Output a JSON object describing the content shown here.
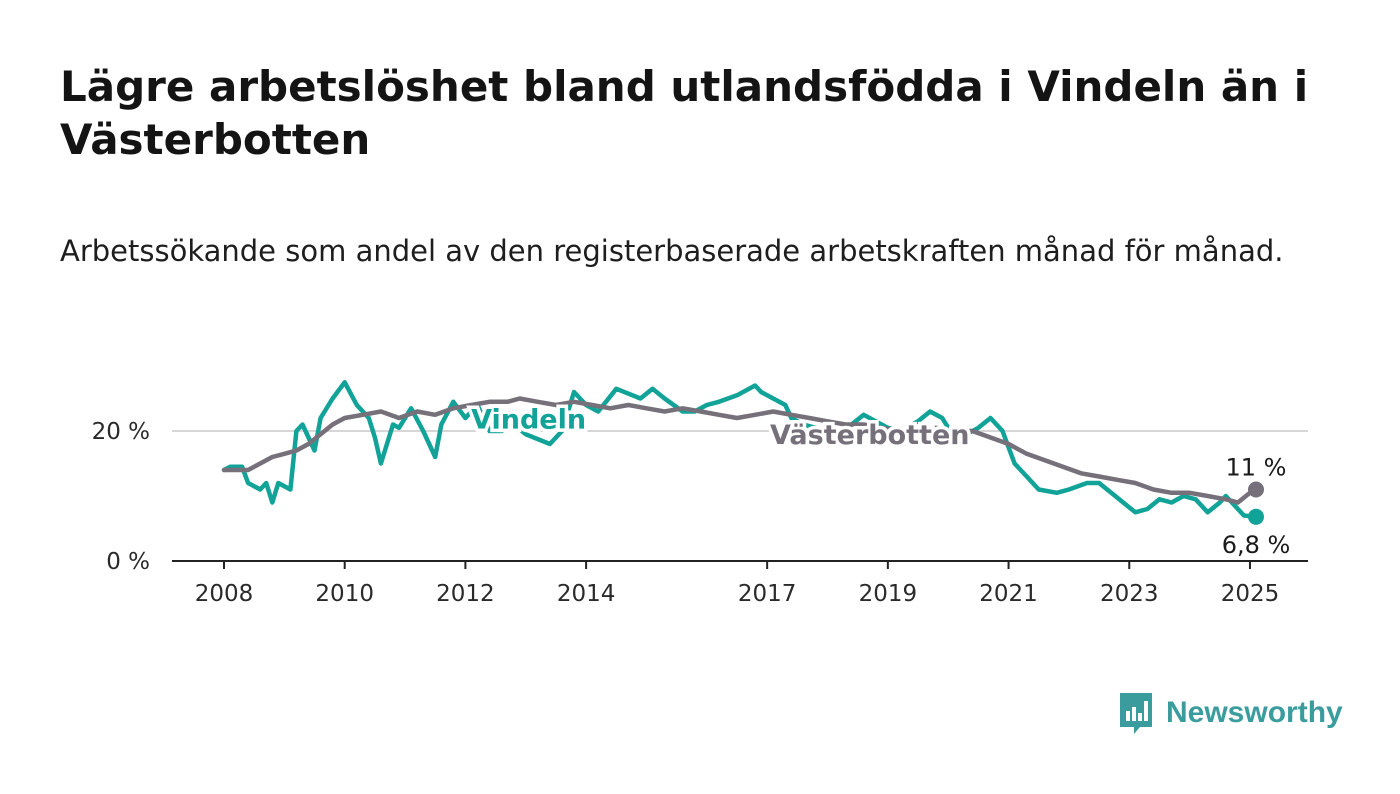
{
  "header": {
    "title": "Lägre arbetslöshet bland utlandsfödda i Vindeln än i Västerbotten",
    "subtitle": "Arbetssökande som andel av den registerbaserade arbetskraften månad för månad."
  },
  "brand": {
    "name": "Newsworthy",
    "color": "#3a9c9c"
  },
  "chart_data": {
    "type": "line",
    "title": "Lägre arbetslöshet bland utlandsfödda i Vindeln än i Västerbotten",
    "subtitle": "Arbetssökande som andel av den registerbaserade arbetskraften månad för månad.",
    "xlabel": "",
    "ylabel": "",
    "x_ticks": [
      "2008",
      "2010",
      "2012",
      "2014",
      "2017",
      "2019",
      "2021",
      "2023",
      "2025"
    ],
    "y_ticks": [
      "0 %",
      "20 %"
    ],
    "xlim": [
      2008,
      2025.1
    ],
    "ylim": [
      0,
      30
    ],
    "grid": "horizontal at 20 %",
    "series": [
      {
        "name": "Vindeln",
        "color": "#12a398",
        "end_label": "6,8 %",
        "x": [
          2008.0,
          2008.1,
          2008.3,
          2008.4,
          2008.6,
          2008.7,
          2008.8,
          2008.9,
          2009.1,
          2009.2,
          2009.3,
          2009.5,
          2009.6,
          2009.8,
          2010.0,
          2010.2,
          2010.4,
          2010.5,
          2010.6,
          2010.8,
          2010.9,
          2011.1,
          2011.3,
          2011.5,
          2011.6,
          2011.8,
          2012.0,
          2012.2,
          2012.4,
          2012.6,
          2012.8,
          2013.0,
          2013.4,
          2013.6,
          2013.8,
          2014.0,
          2014.2,
          2014.5,
          2014.9,
          2015.1,
          2015.3,
          2015.6,
          2015.8,
          2016.0,
          2016.2,
          2016.5,
          2016.8,
          2016.9,
          2017.1,
          2017.3,
          2017.4,
          2017.6,
          2017.8,
          2018.0,
          2018.2,
          2018.4,
          2018.6,
          2018.8,
          2019.0,
          2019.2,
          2019.5,
          2019.7,
          2019.9,
          2020.1,
          2020.3,
          2020.5,
          2020.7,
          2020.9,
          2021.1,
          2021.3,
          2021.5,
          2021.8,
          2022.0,
          2022.3,
          2022.5,
          2022.7,
          2022.9,
          2023.1,
          2023.3,
          2023.5,
          2023.7,
          2023.9,
          2024.1,
          2024.3,
          2024.5,
          2024.6,
          2024.8,
          2024.9,
          2025.1
        ],
        "values": [
          14,
          14.5,
          14.5,
          12,
          11,
          12,
          9,
          12,
          11,
          20,
          21,
          17,
          22,
          25,
          27.5,
          24,
          22,
          19,
          15,
          21,
          20.5,
          23.5,
          20,
          16,
          21,
          24.5,
          22,
          24,
          20,
          20,
          21,
          19.5,
          18,
          20,
          26,
          24,
          23,
          26.5,
          25,
          26.5,
          25,
          23,
          23,
          24,
          24.5,
          25.5,
          27,
          26,
          25,
          24,
          22,
          21,
          20.5,
          20,
          19.5,
          21,
          22.5,
          21.5,
          20.5,
          20,
          21.5,
          23,
          22,
          19,
          19.5,
          20.5,
          22,
          20,
          15,
          13,
          11,
          10.5,
          11,
          12,
          12,
          10.5,
          9,
          7.5,
          8,
          9.5,
          9,
          10,
          9.5,
          7.5,
          9,
          10,
          8,
          7,
          6.8
        ]
      },
      {
        "name": "Västerbotten",
        "color": "#75707a",
        "end_label": "11 %",
        "x": [
          2008.0,
          2008.2,
          2008.4,
          2008.6,
          2008.8,
          2009.0,
          2009.2,
          2009.4,
          2009.6,
          2009.8,
          2010.0,
          2010.3,
          2010.6,
          2010.9,
          2011.2,
          2011.5,
          2011.8,
          2012.1,
          2012.4,
          2012.7,
          2012.9,
          2013.2,
          2013.5,
          2013.8,
          2014.1,
          2014.4,
          2014.7,
          2015.0,
          2015.3,
          2015.6,
          2015.9,
          2016.2,
          2016.5,
          2016.8,
          2017.1,
          2017.4,
          2017.7,
          2018.0,
          2018.3,
          2018.6,
          2018.9,
          2019.2,
          2019.5,
          2019.8,
          2020.1,
          2020.4,
          2020.7,
          2021.0,
          2021.3,
          2021.6,
          2021.9,
          2022.2,
          2022.5,
          2022.8,
          2023.1,
          2023.4,
          2023.7,
          2024.0,
          2024.3,
          2024.6,
          2024.8,
          2025.0,
          2025.1
        ],
        "values": [
          14,
          14,
          14,
          15,
          16,
          16.5,
          17,
          18,
          19.5,
          21,
          22,
          22.5,
          23,
          22,
          23,
          22.5,
          23.5,
          24,
          24.5,
          24.5,
          25,
          24.5,
          24,
          24.5,
          24,
          23.5,
          24,
          23.5,
          23,
          23.5,
          23,
          22.5,
          22,
          22.5,
          23,
          22.5,
          22,
          21.5,
          21,
          21,
          20.5,
          20,
          20,
          20.5,
          20,
          20,
          19,
          18,
          16.5,
          15.5,
          14.5,
          13.5,
          13,
          12.5,
          12,
          11,
          10.5,
          10.5,
          10,
          9.5,
          9,
          10.5,
          11
        ]
      }
    ]
  }
}
